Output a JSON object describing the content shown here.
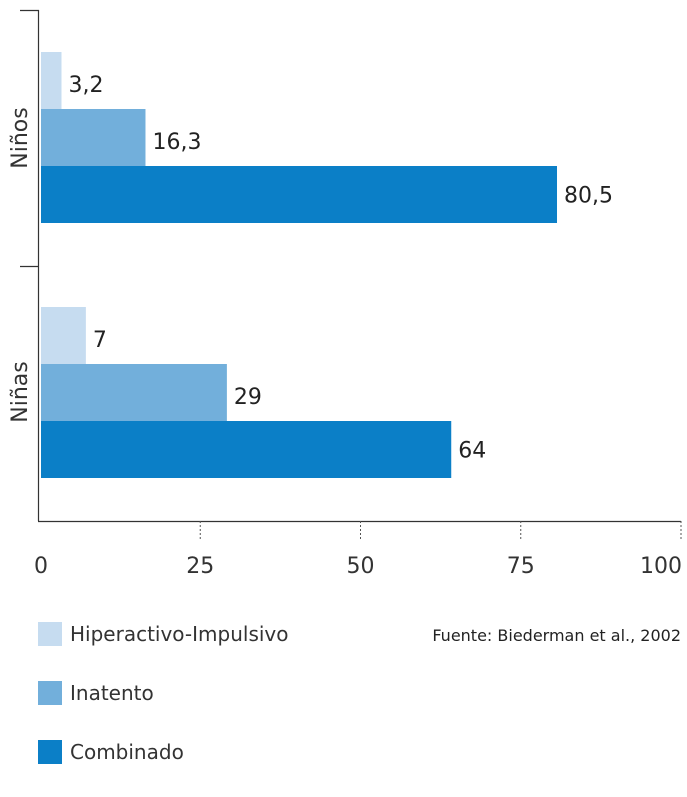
{
  "chart_data": {
    "type": "bar",
    "orientation": "horizontal",
    "categories": [
      "Niños",
      "Niñas"
    ],
    "series": [
      {
        "name": "Hiperactivo-Impulsivo",
        "values": [
          3.2,
          7
        ],
        "labels": [
          "3,2",
          "7"
        ],
        "color": "#c6dcf0"
      },
      {
        "name": "Inatento",
        "values": [
          16.3,
          29
        ],
        "labels": [
          "16,3",
          "29"
        ],
        "color": "#72afdb"
      },
      {
        "name": "Combinado",
        "values": [
          80.5,
          64
        ],
        "labels": [
          "80,5",
          "64"
        ],
        "color": "#0b7fc7"
      }
    ],
    "xlim": [
      0,
      100
    ],
    "xticks": [
      0,
      25,
      50,
      75,
      100
    ],
    "grid": false,
    "legend_position": "bottom-left"
  },
  "legend": {
    "items": [
      {
        "label": "Hiperactivo-Impulsivo",
        "color": "#c6dcf0"
      },
      {
        "label": "Inatento",
        "color": "#72afdb"
      },
      {
        "label": "Combinado",
        "color": "#0b7fc7"
      }
    ]
  },
  "source": "Fuente: Biederman et al., 2002"
}
